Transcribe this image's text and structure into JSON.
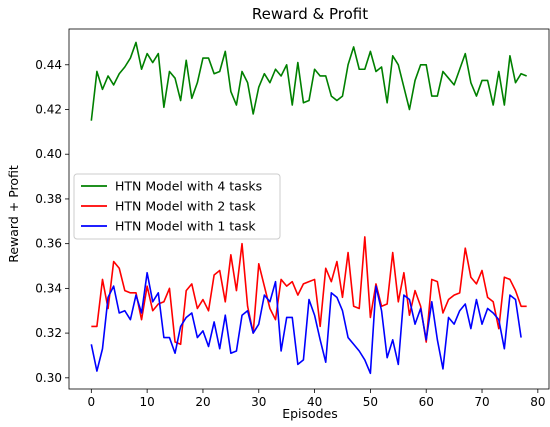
{
  "chart_data": {
    "type": "line",
    "title": "Reward & Profit",
    "xlabel": "Episodes",
    "ylabel": "Reward  + Profit",
    "xlim": [
      -4,
      82
    ],
    "ylim": [
      0.295,
      0.456
    ],
    "xticks": [
      0,
      10,
      20,
      30,
      40,
      50,
      60,
      70,
      80
    ],
    "yticks": [
      0.3,
      0.32,
      0.34,
      0.36,
      0.38,
      0.4,
      0.42,
      0.44
    ],
    "ytick_labels": [
      "0.30",
      "0.32",
      "0.34",
      "0.36",
      "0.38",
      "0.40",
      "0.42",
      "0.44"
    ],
    "grid": false,
    "legend_position": "center-left",
    "series": [
      {
        "name": "HTN Model with 4 tasks",
        "color": "#008000",
        "values": [
          0.415,
          0.437,
          0.429,
          0.435,
          0.431,
          0.436,
          0.439,
          0.443,
          0.45,
          0.438,
          0.445,
          0.441,
          0.445,
          0.421,
          0.437,
          0.434,
          0.424,
          0.442,
          0.425,
          0.432,
          0.443,
          0.443,
          0.436,
          0.437,
          0.446,
          0.428,
          0.422,
          0.437,
          0.432,
          0.418,
          0.43,
          0.436,
          0.432,
          0.438,
          0.435,
          0.44,
          0.422,
          0.441,
          0.423,
          0.424,
          0.438,
          0.435,
          0.435,
          0.426,
          0.424,
          0.426,
          0.44,
          0.448,
          0.438,
          0.438,
          0.446,
          0.437,
          0.439,
          0.423,
          0.444,
          0.44,
          0.43,
          0.42,
          0.433,
          0.44,
          0.44,
          0.426,
          0.426,
          0.437,
          0.434,
          0.431,
          0.438,
          0.445,
          0.432,
          0.426,
          0.433,
          0.433,
          0.422,
          0.437,
          0.422,
          0.444,
          0.432,
          0.436,
          0.435
        ]
      },
      {
        "name": "HTN Model with 2 task",
        "color": "#ff0000",
        "values": [
          0.323,
          0.323,
          0.344,
          0.331,
          0.352,
          0.349,
          0.339,
          0.338,
          0.338,
          0.326,
          0.341,
          0.33,
          0.333,
          0.334,
          0.34,
          0.316,
          0.315,
          0.339,
          0.342,
          0.331,
          0.335,
          0.33,
          0.346,
          0.348,
          0.334,
          0.355,
          0.339,
          0.36,
          0.332,
          0.32,
          0.351,
          0.341,
          0.331,
          0.326,
          0.344,
          0.341,
          0.343,
          0.337,
          0.342,
          0.343,
          0.344,
          0.323,
          0.349,
          0.343,
          0.352,
          0.336,
          0.356,
          0.332,
          0.331,
          0.363,
          0.327,
          0.342,
          0.332,
          0.333,
          0.356,
          0.334,
          0.347,
          0.328,
          0.339,
          0.332,
          0.316,
          0.344,
          0.343,
          0.329,
          0.335,
          0.337,
          0.338,
          0.358,
          0.345,
          0.342,
          0.348,
          0.336,
          0.334,
          0.322,
          0.345,
          0.344,
          0.339,
          0.332,
          0.332
        ]
      },
      {
        "name": "HTN Model with 1 task",
        "color": "#0000ff",
        "values": [
          0.315,
          0.303,
          0.313,
          0.336,
          0.341,
          0.329,
          0.33,
          0.326,
          0.337,
          0.329,
          0.347,
          0.334,
          0.338,
          0.318,
          0.318,
          0.311,
          0.323,
          0.327,
          0.329,
          0.318,
          0.321,
          0.314,
          0.325,
          0.313,
          0.328,
          0.311,
          0.312,
          0.328,
          0.33,
          0.32,
          0.324,
          0.337,
          0.334,
          0.343,
          0.312,
          0.327,
          0.327,
          0.306,
          0.308,
          0.335,
          0.328,
          0.317,
          0.307,
          0.338,
          0.336,
          0.33,
          0.318,
          0.315,
          0.312,
          0.308,
          0.302,
          0.341,
          0.33,
          0.309,
          0.317,
          0.306,
          0.337,
          0.335,
          0.324,
          0.331,
          0.317,
          0.334,
          0.317,
          0.304,
          0.327,
          0.324,
          0.33,
          0.333,
          0.322,
          0.335,
          0.324,
          0.331,
          0.329,
          0.326,
          0.313,
          0.337,
          0.335,
          0.318
        ]
      }
    ]
  }
}
